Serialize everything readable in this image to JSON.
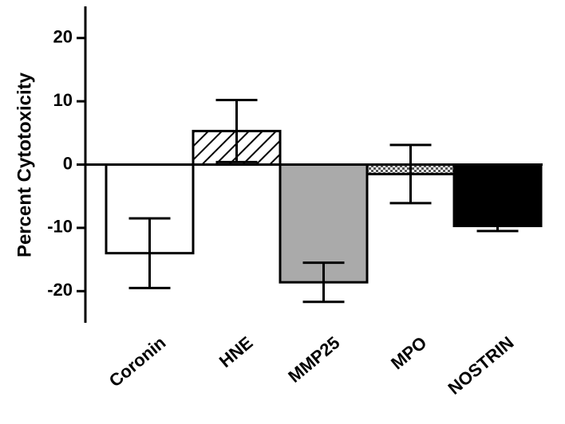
{
  "chart_data": {
    "type": "bar",
    "y_label": "Percent Cytotoxicity",
    "categories": [
      "Coronin",
      "HNE",
      "MMP25",
      "MPO",
      "NOSTRIN"
    ],
    "values": [
      -14,
      5.3,
      -18.6,
      -1.5,
      -9.7
    ],
    "errors": [
      5.5,
      4.9,
      3.1,
      4.6,
      0.8
    ],
    "colors": [
      "#ffffff",
      "#ffffff",
      "#aaaaaa",
      "#ffffff",
      "#000000"
    ],
    "patterns": [
      null,
      "hatch",
      null,
      "dots",
      null
    ],
    "ylim": [
      -25,
      25
    ],
    "yticks": [
      -20,
      -10,
      0,
      10,
      20
    ]
  }
}
